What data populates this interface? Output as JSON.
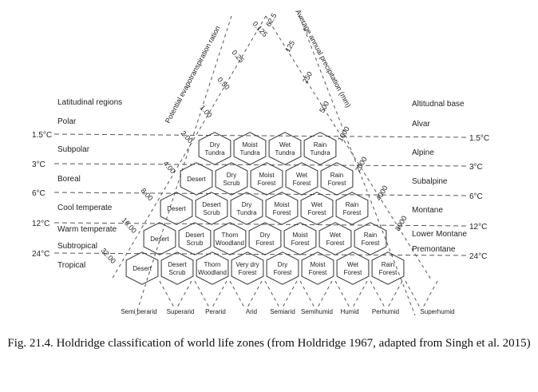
{
  "diagram": {
    "left_regions": {
      "heading": "Latitudinal regions",
      "items": [
        "Polar",
        "Subpolar",
        "Boreal",
        "Cool temperate",
        "Warm temperate",
        "Subtropical",
        "Tropical"
      ]
    },
    "right_regions": {
      "heading": "Altitudnal base",
      "items": [
        "Alvar",
        "Alpine",
        "Subalpine",
        "Montane",
        "Lower Montane",
        "Premontane"
      ]
    },
    "temperature_lines": [
      "1.5°C",
      "3°C",
      "6°C",
      "12°C",
      "24°C"
    ],
    "pet_axis": {
      "title": "Potential evapotranspiration ration",
      "ticks": [
        "0.125",
        "0.25",
        "0.50",
        "1.00",
        "2.00",
        "4.00",
        "8.00",
        "16.00",
        "32.00"
      ]
    },
    "precip_axis": {
      "title": "Average annual precipitation (mm)",
      "ticks": [
        "62.5",
        "125",
        "250",
        "500",
        "1000",
        "2000",
        "4000",
        "8000"
      ]
    },
    "humidity_provinces": [
      "Semi perarid",
      "Superarid",
      "Perarid",
      "Arid",
      "Semiarid",
      "Semihumid",
      "Humid",
      "Perhumid",
      "Superhumid"
    ],
    "zones": [
      [
        "Dry Tundra",
        "Moist Tundra",
        "Wet Tundra",
        "Rain Tundra"
      ],
      [
        "Desert",
        "Dry Scrub",
        "Moist Forest",
        "Wet Forest",
        "Rain Forest"
      ],
      [
        "Desert",
        "Desert Scrub",
        "Dry Tundra",
        "Moist Forest",
        "Wet Forest",
        "Rain Forest"
      ],
      [
        "Desert",
        "Desert Scrub",
        "Thorn Woodland",
        "Dry Forest",
        "Moist Forest",
        "Wet Forest",
        "Rain Forest"
      ],
      [
        "Desert",
        "Desert Scrub",
        "Thorn Woodland",
        "Very dry Forest",
        "Dry Forest",
        "Moist Forest",
        "Wet Forest",
        "Rain Forest"
      ]
    ]
  },
  "caption": "Fig. 21.4. Holdridge classification of world life zones (from Holdridge 1967, adapted from Singh et al. 2015)"
}
